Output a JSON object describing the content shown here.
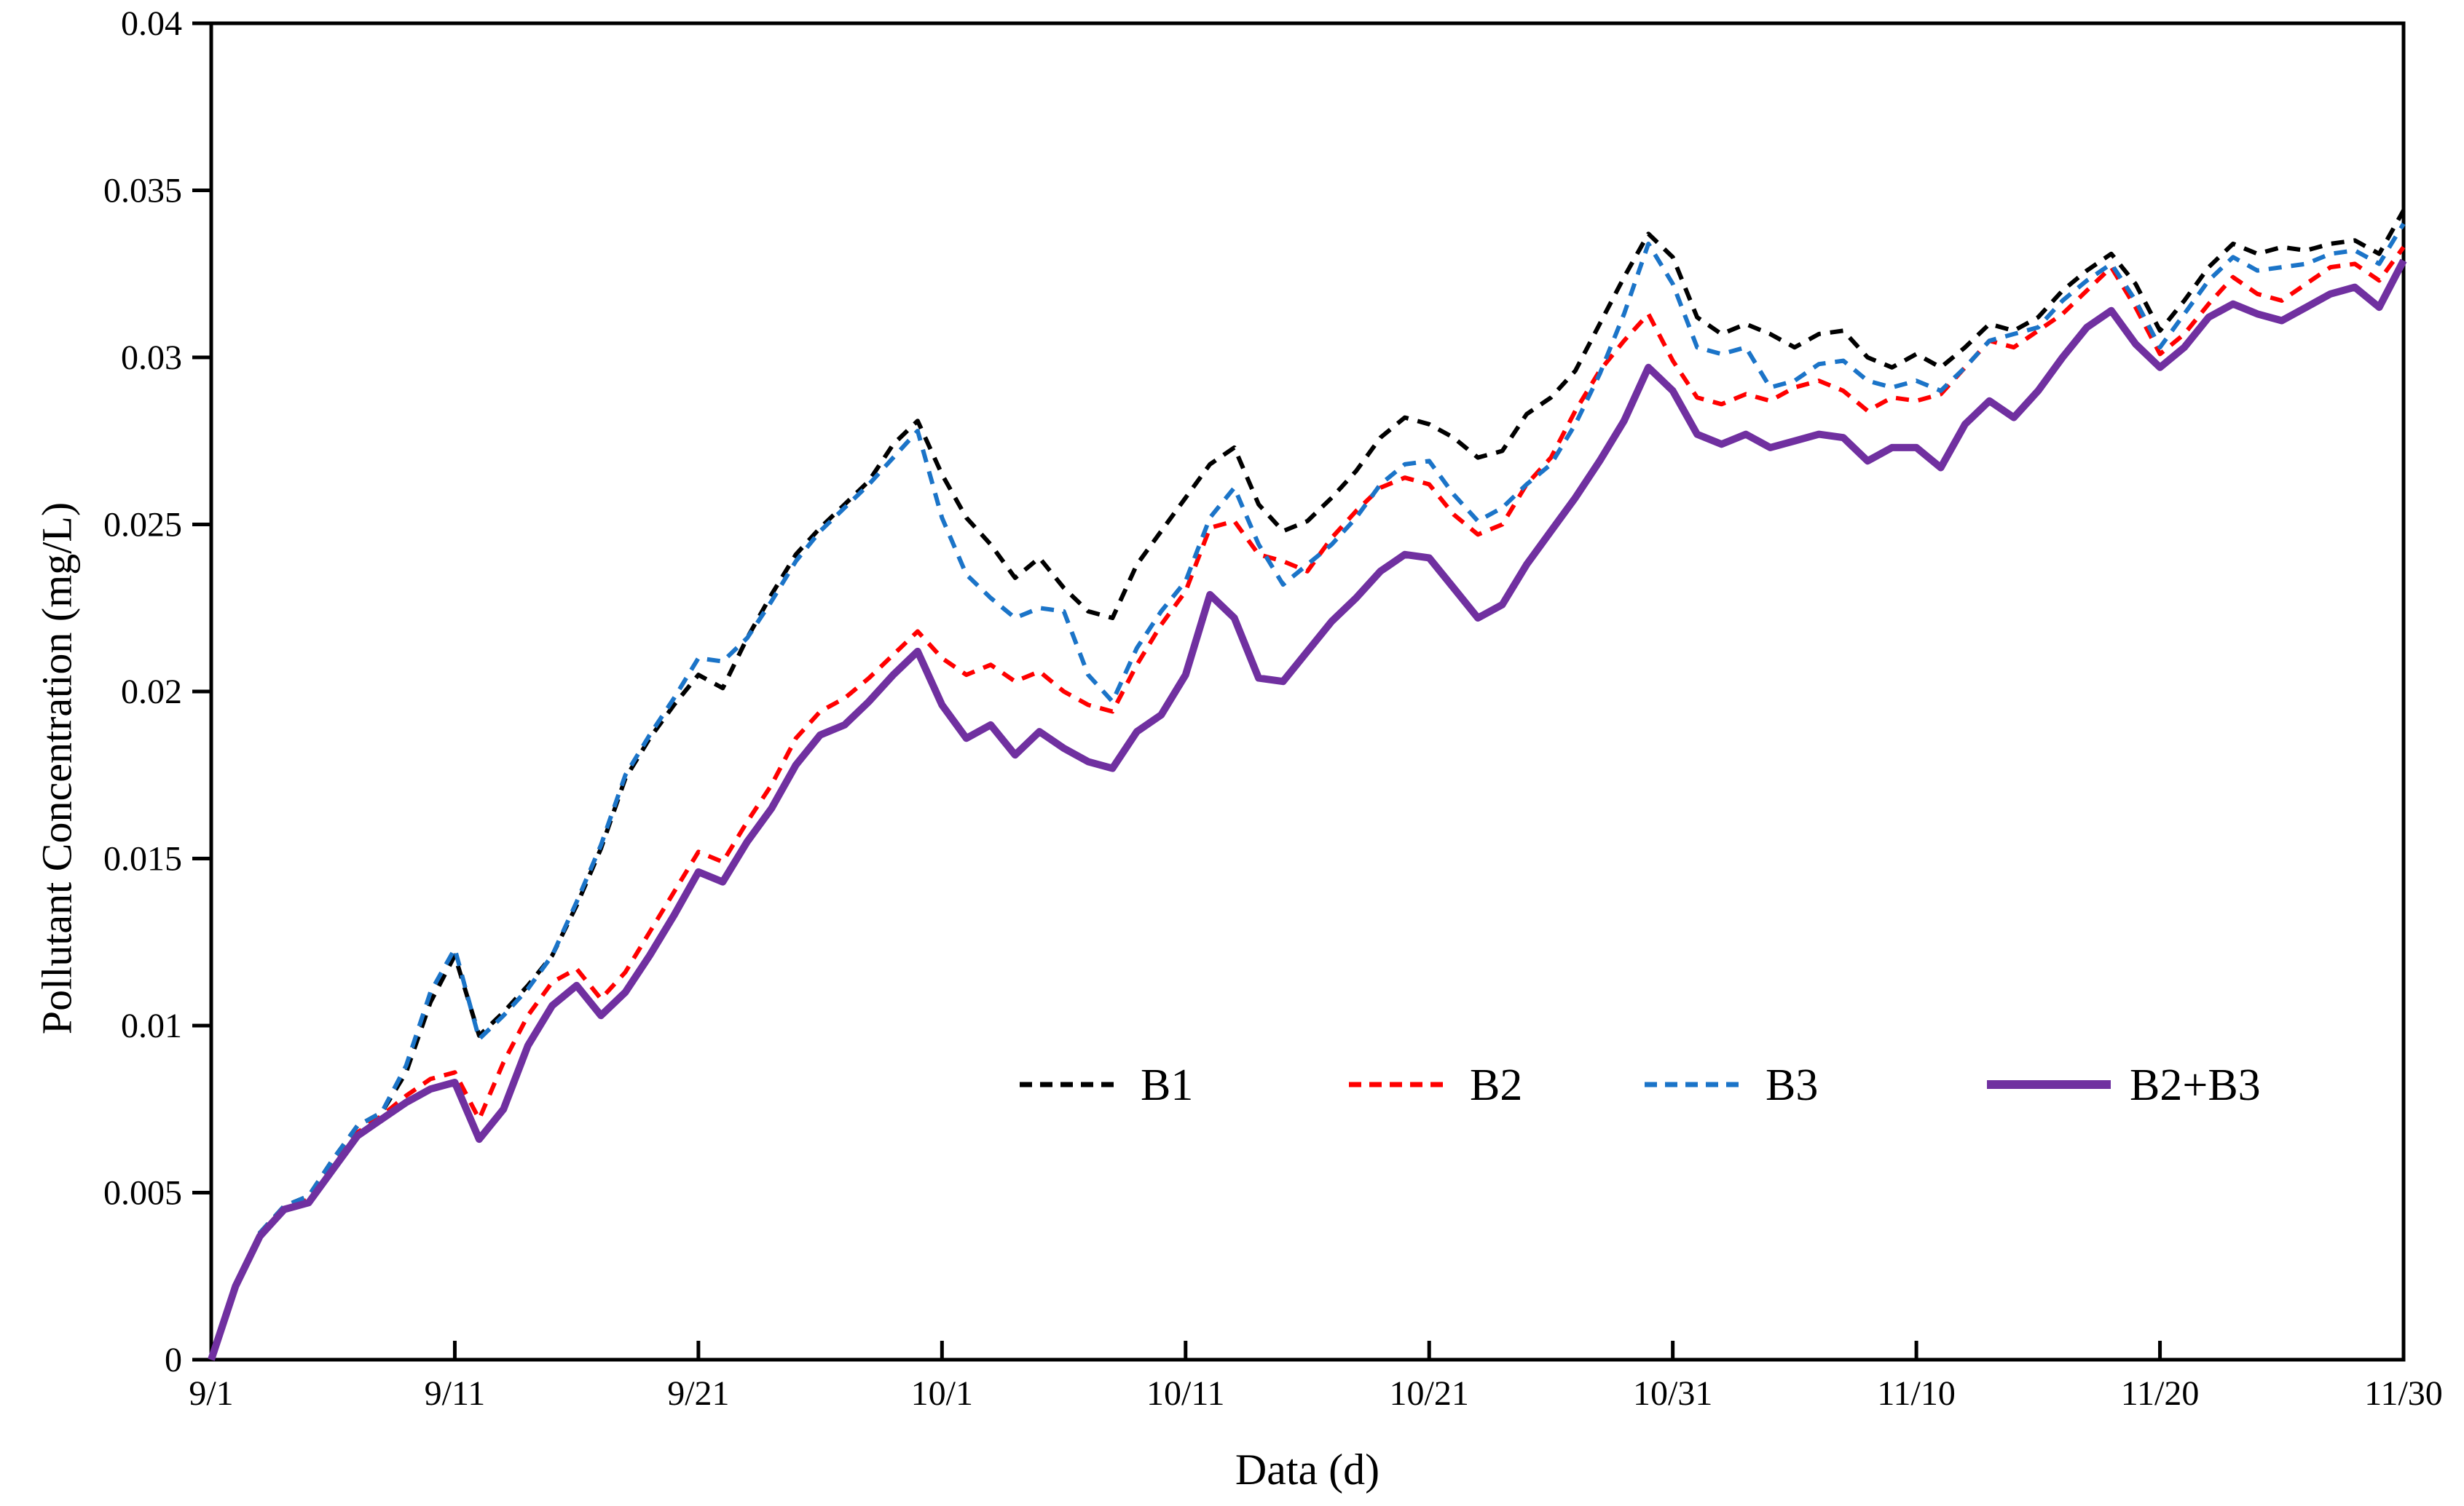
{
  "page": {
    "background_color": "#ffffff"
  },
  "chart_data": {
    "type": "line",
    "title": "",
    "xlabel": "Data (d)",
    "ylabel": "Pollutant Concentration (mg/L)",
    "x_tick_labels": [
      "9/1",
      "9/11",
      "9/21",
      "10/1",
      "10/11",
      "10/21",
      "10/31",
      "11/10",
      "11/20",
      "11/30"
    ],
    "y_tick_labels": [
      "0",
      "0.005",
      "0.01",
      "0.015",
      "0.02",
      "0.025",
      "0.03",
      "0.035",
      "0.04"
    ],
    "ylim": [
      0,
      0.04
    ],
    "x_days_span": 90,
    "grid": false,
    "legend_position": "inside-bottom-center-right",
    "axis_color": "#000000",
    "series": [
      {
        "name": "B1",
        "color": "#000000",
        "style": "dashed",
        "width": 6,
        "values": [
          0,
          0.0022,
          0.0038,
          0.0046,
          0.0049,
          0.006,
          0.007,
          0.0074,
          0.0086,
          0.0107,
          0.0121,
          0.0097,
          0.0104,
          0.0112,
          0.0121,
          0.0136,
          0.0153,
          0.0174,
          0.0186,
          0.0196,
          0.0205,
          0.0201,
          0.0216,
          0.0229,
          0.0241,
          0.0249,
          0.0256,
          0.0263,
          0.0274,
          0.0281,
          0.0265,
          0.0252,
          0.0244,
          0.0234,
          0.024,
          0.0231,
          0.0224,
          0.0222,
          0.0238,
          0.0248,
          0.0258,
          0.0268,
          0.0273,
          0.0256,
          0.0248,
          0.0251,
          0.0258,
          0.0266,
          0.0276,
          0.0282,
          0.028,
          0.0276,
          0.027,
          0.0272,
          0.0283,
          0.0288,
          0.0296,
          0.031,
          0.0324,
          0.0337,
          0.033,
          0.0312,
          0.0307,
          0.031,
          0.0307,
          0.0303,
          0.0307,
          0.0308,
          0.03,
          0.0297,
          0.0301,
          0.0297,
          0.0303,
          0.031,
          0.0308,
          0.0312,
          0.032,
          0.0326,
          0.0331,
          0.0322,
          0.0308,
          0.0317,
          0.0327,
          0.0334,
          0.0331,
          0.0333,
          0.0332,
          0.0334,
          0.0335,
          0.0331,
          0.0344
        ]
      },
      {
        "name": "B2",
        "color": "#FF0000",
        "style": "dashed",
        "width": 6,
        "values": [
          0,
          0.0022,
          0.0038,
          0.0045,
          0.0048,
          0.0058,
          0.0068,
          0.0073,
          0.0079,
          0.0084,
          0.0086,
          0.0072,
          0.0089,
          0.0103,
          0.0113,
          0.0117,
          0.0108,
          0.0116,
          0.0128,
          0.014,
          0.0152,
          0.0149,
          0.0161,
          0.0172,
          0.0186,
          0.0194,
          0.0198,
          0.0204,
          0.0211,
          0.0218,
          0.021,
          0.0205,
          0.0208,
          0.0203,
          0.0206,
          0.02,
          0.0196,
          0.0194,
          0.0208,
          0.022,
          0.023,
          0.0249,
          0.0251,
          0.0241,
          0.0239,
          0.0236,
          0.0246,
          0.0254,
          0.0261,
          0.0264,
          0.0262,
          0.0253,
          0.0247,
          0.025,
          0.0262,
          0.027,
          0.0284,
          0.0296,
          0.0305,
          0.0313,
          0.0299,
          0.0288,
          0.0286,
          0.0289,
          0.0287,
          0.0291,
          0.0293,
          0.029,
          0.0284,
          0.0288,
          0.0287,
          0.0289,
          0.0297,
          0.0305,
          0.0303,
          0.0308,
          0.0313,
          0.032,
          0.0327,
          0.0315,
          0.0301,
          0.0307,
          0.0316,
          0.0324,
          0.0319,
          0.0317,
          0.0322,
          0.0327,
          0.0328,
          0.0323,
          0.0333
        ]
      },
      {
        "name": "B3",
        "color": "#1B74C8",
        "style": "dashed",
        "width": 6,
        "values": [
          0,
          0.0022,
          0.0038,
          0.0046,
          0.0049,
          0.006,
          0.007,
          0.0074,
          0.0088,
          0.011,
          0.0123,
          0.0096,
          0.0103,
          0.0111,
          0.0121,
          0.0137,
          0.0154,
          0.0175,
          0.0187,
          0.0198,
          0.021,
          0.0209,
          0.0216,
          0.0227,
          0.0239,
          0.0248,
          0.0255,
          0.0262,
          0.027,
          0.0278,
          0.0252,
          0.0235,
          0.0228,
          0.0222,
          0.0225,
          0.0224,
          0.0205,
          0.0197,
          0.0213,
          0.0224,
          0.0233,
          0.0252,
          0.0261,
          0.0244,
          0.0232,
          0.0238,
          0.0244,
          0.0252,
          0.0262,
          0.0268,
          0.0269,
          0.0259,
          0.0251,
          0.0255,
          0.0262,
          0.0268,
          0.028,
          0.0295,
          0.0313,
          0.0334,
          0.0322,
          0.0303,
          0.0301,
          0.0303,
          0.0291,
          0.0293,
          0.0298,
          0.0299,
          0.0293,
          0.0291,
          0.0293,
          0.029,
          0.0297,
          0.0305,
          0.0307,
          0.0309,
          0.0317,
          0.0323,
          0.0328,
          0.0317,
          0.0303,
          0.0313,
          0.0323,
          0.033,
          0.0326,
          0.0327,
          0.0328,
          0.0331,
          0.0332,
          0.0328,
          0.034
        ]
      },
      {
        "name": "B2+B3",
        "color": "#7030A0",
        "style": "solid",
        "width": 10,
        "values": [
          0,
          0.0022,
          0.0037,
          0.0045,
          0.0047,
          0.0057,
          0.0067,
          0.0072,
          0.0077,
          0.0081,
          0.0083,
          0.0066,
          0.0075,
          0.0094,
          0.0106,
          0.0112,
          0.0103,
          0.011,
          0.0121,
          0.0133,
          0.0146,
          0.0143,
          0.0155,
          0.0165,
          0.0178,
          0.0187,
          0.019,
          0.0197,
          0.0205,
          0.0212,
          0.0196,
          0.0186,
          0.019,
          0.0181,
          0.0188,
          0.0183,
          0.0179,
          0.0177,
          0.0188,
          0.0193,
          0.0205,
          0.0229,
          0.0222,
          0.0204,
          0.0203,
          0.0212,
          0.0221,
          0.0228,
          0.0236,
          0.0241,
          0.024,
          0.0231,
          0.0222,
          0.0226,
          0.0238,
          0.0248,
          0.0258,
          0.0269,
          0.0281,
          0.0297,
          0.029,
          0.0277,
          0.0274,
          0.0277,
          0.0273,
          0.0275,
          0.0277,
          0.0276,
          0.0269,
          0.0273,
          0.0273,
          0.0267,
          0.028,
          0.0287,
          0.0282,
          0.029,
          0.03,
          0.0309,
          0.0314,
          0.0304,
          0.0297,
          0.0303,
          0.0312,
          0.0316,
          0.0313,
          0.0311,
          0.0315,
          0.0319,
          0.0321,
          0.0315,
          0.0329
        ]
      }
    ],
    "legend": [
      {
        "label": "B1",
        "color": "#000000",
        "style": "dashed"
      },
      {
        "label": "B2",
        "color": "#FF0000",
        "style": "dashed"
      },
      {
        "label": "B3",
        "color": "#1B74C8",
        "style": "dashed"
      },
      {
        "label": "B2+B3",
        "color": "#7030A0",
        "style": "solid"
      }
    ]
  }
}
